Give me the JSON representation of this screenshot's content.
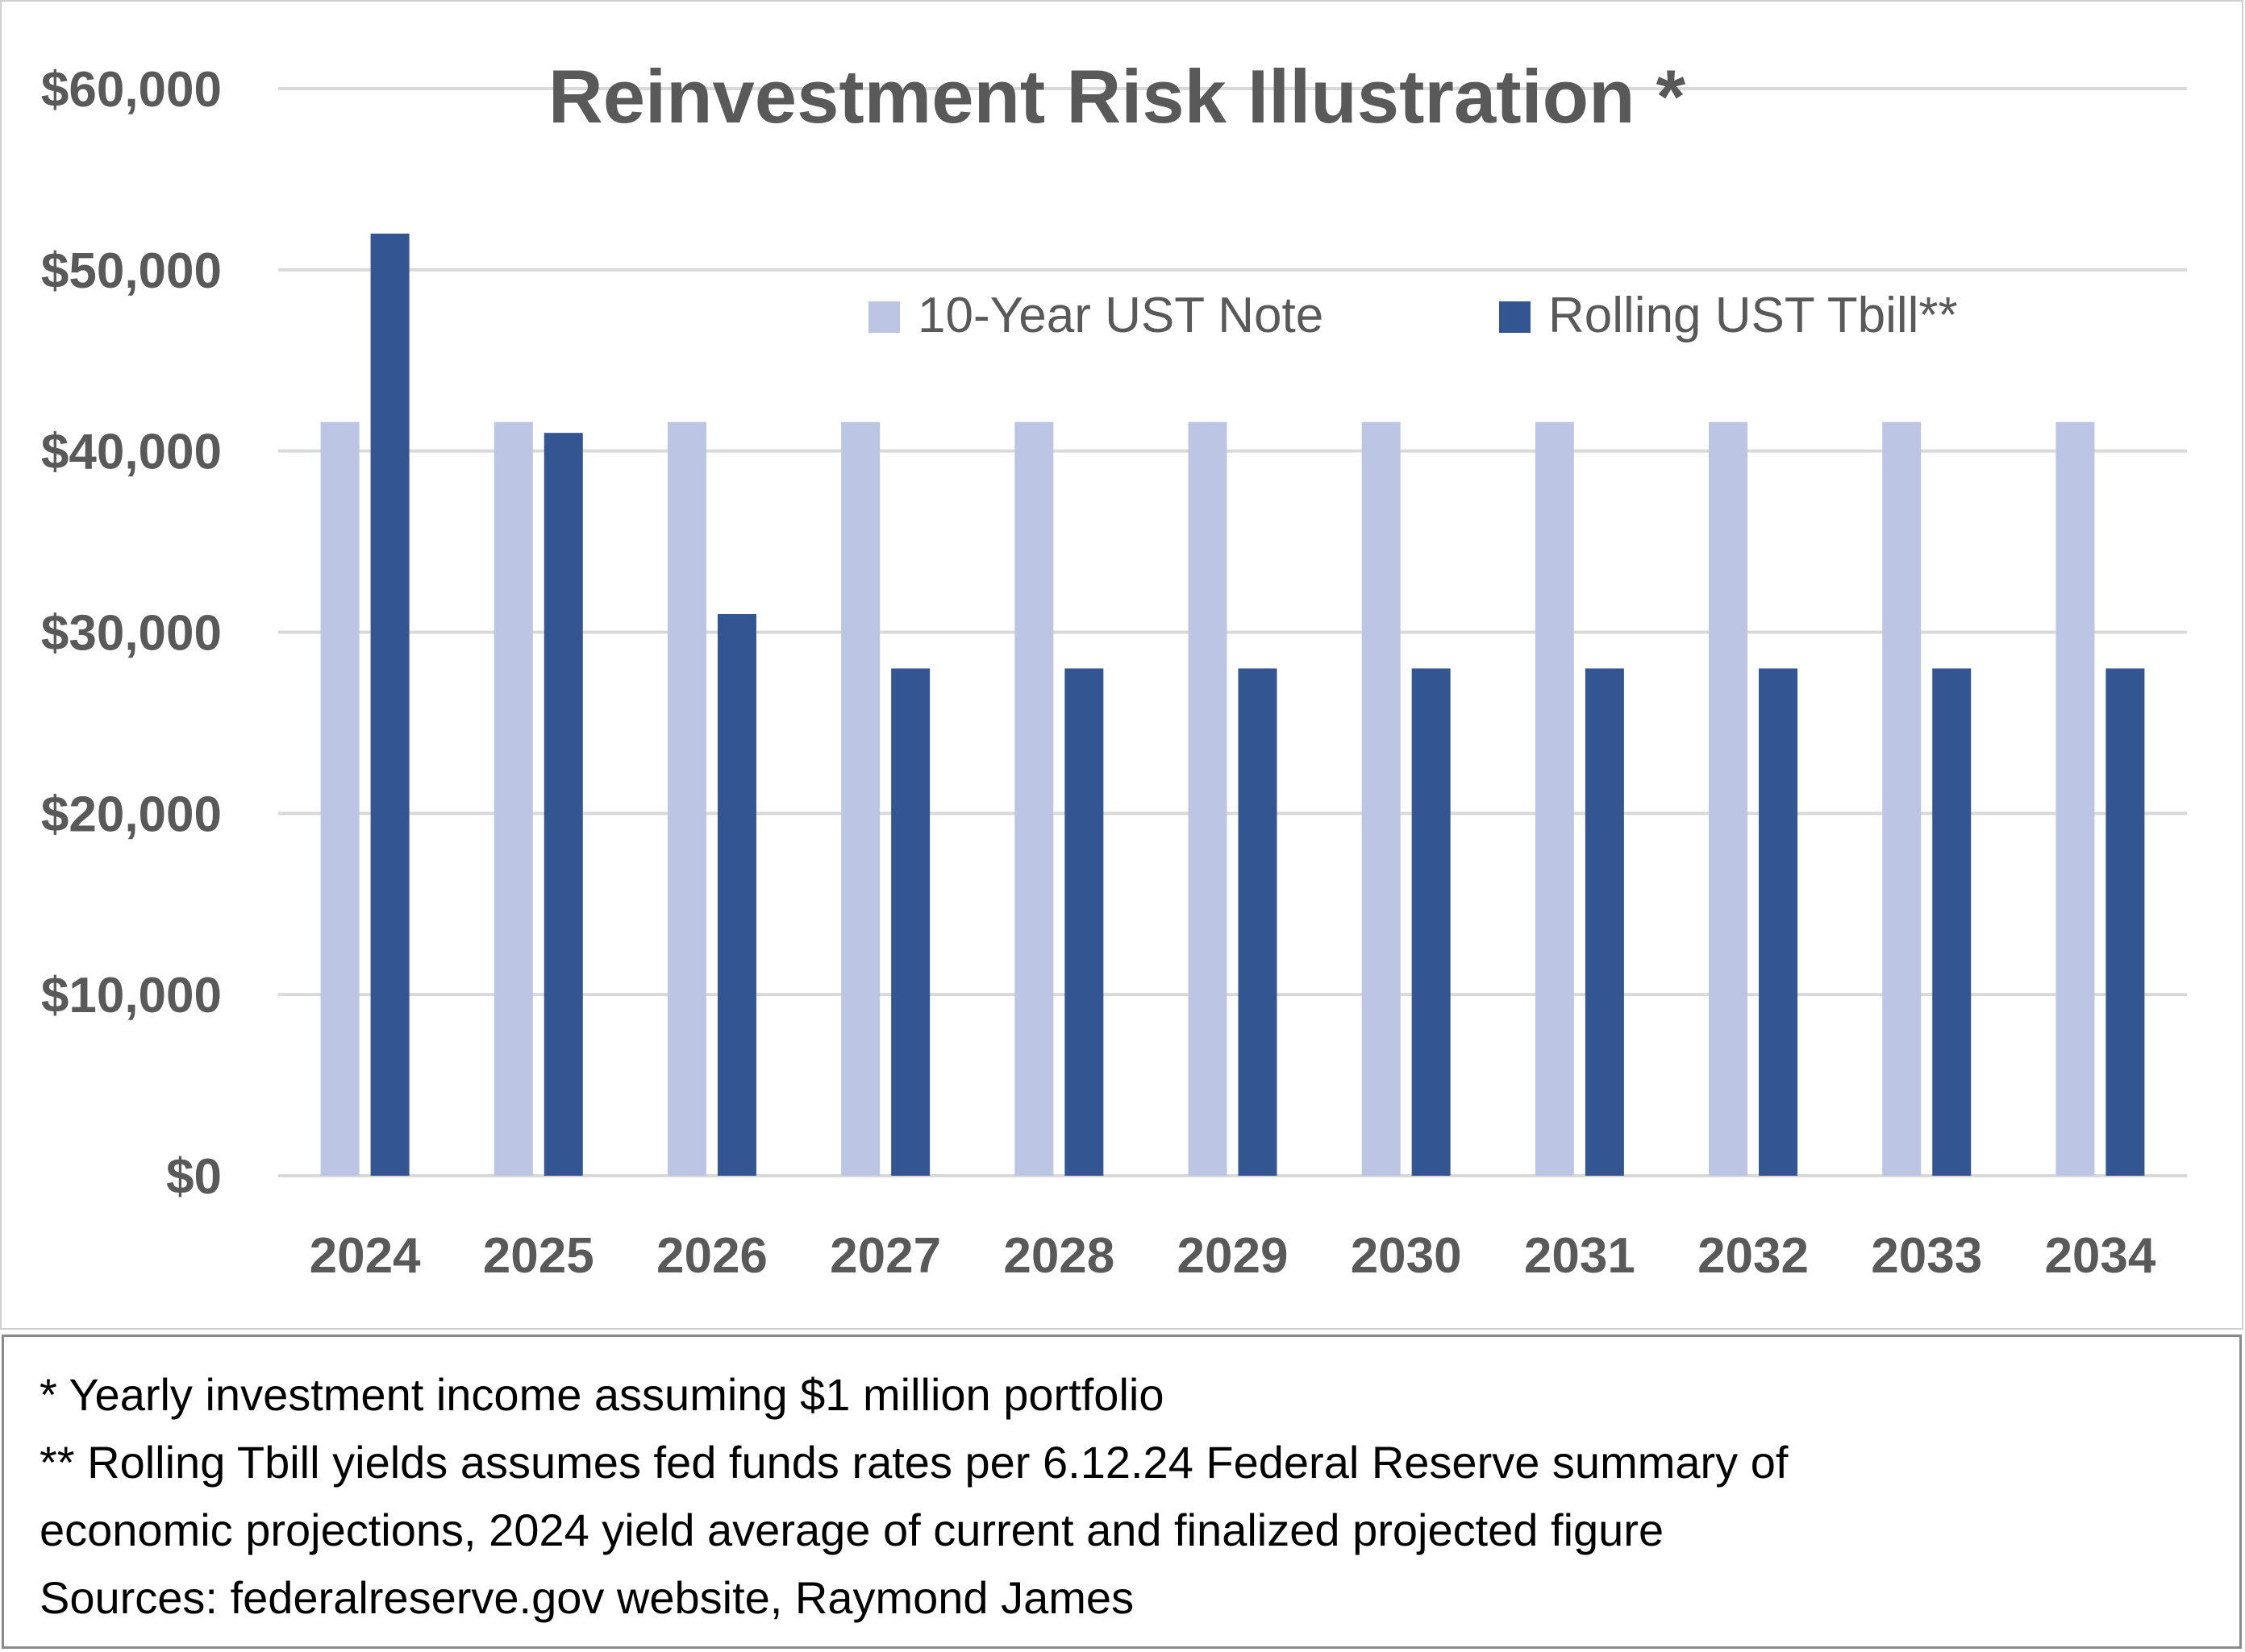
{
  "chart_data": {
    "type": "bar",
    "title": "Reinvestment Risk Illustration *",
    "categories": [
      "2024",
      "2025",
      "2026",
      "2027",
      "2028",
      "2029",
      "2030",
      "2031",
      "2032",
      "2033",
      "2034"
    ],
    "series": [
      {
        "name": "10-Year UST Note",
        "color": "#bcc5e3",
        "values": [
          41600,
          41600,
          41600,
          41600,
          41600,
          41600,
          41600,
          41600,
          41600,
          41600,
          41600
        ]
      },
      {
        "name": "Rolling UST Tbill**",
        "color": "#335693",
        "values": [
          52000,
          41000,
          31000,
          28000,
          28000,
          28000,
          28000,
          28000,
          28000,
          28000,
          28000
        ]
      }
    ],
    "ylim": [
      0,
      60000
    ],
    "yticks": [
      0,
      10000,
      20000,
      30000,
      40000,
      50000,
      60000
    ],
    "ytick_labels": [
      "$0",
      "$10,000",
      "$20,000",
      "$30,000",
      "$40,000",
      "$50,000",
      "$60,000"
    ],
    "xlabel": "",
    "ylabel": "",
    "grid": true,
    "legend_position": "top-right"
  },
  "notes": {
    "line1": "* Yearly investment income assuming $1 million portfolio",
    "line2": "** Rolling Tbill yields assumes fed funds rates per 6.12.24 Federal Reserve summary of",
    "line3": "economic projections, 2024 yield average of current and finalized projected figure",
    "line4": "Sources: federalreserve.gov website, Raymond James"
  }
}
